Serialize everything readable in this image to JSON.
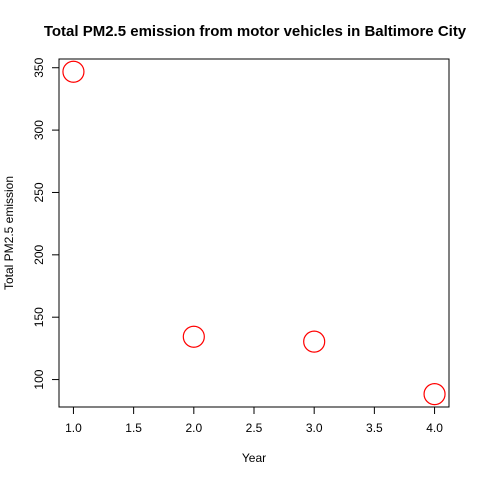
{
  "chart_data": {
    "type": "scatter",
    "title": "Total PM2.5 emission from motor vehicles in Baltimore City",
    "xlabel": "Year",
    "ylabel": "Total PM2.5 emission",
    "x": [
      1.0,
      2.0,
      3.0,
      4.0
    ],
    "y": [
      346.8,
      134.3,
      130.4,
      88.3
    ],
    "xlim": [
      0.88,
      4.12
    ],
    "ylim": [
      78.0,
      357.0
    ],
    "x_ticks": [
      1.0,
      1.5,
      2.0,
      2.5,
      3.0,
      3.5,
      4.0
    ],
    "x_tick_labels": [
      "1.0",
      "1.5",
      "2.0",
      "2.5",
      "3.0",
      "3.5",
      "4.0"
    ],
    "y_ticks": [
      100,
      150,
      200,
      250,
      300,
      350
    ],
    "y_tick_labels": [
      "100",
      "150",
      "200",
      "250",
      "300",
      "350"
    ],
    "marker": "open-circle",
    "marker_color": "#ff0000",
    "grid": false,
    "legend": "none"
  }
}
